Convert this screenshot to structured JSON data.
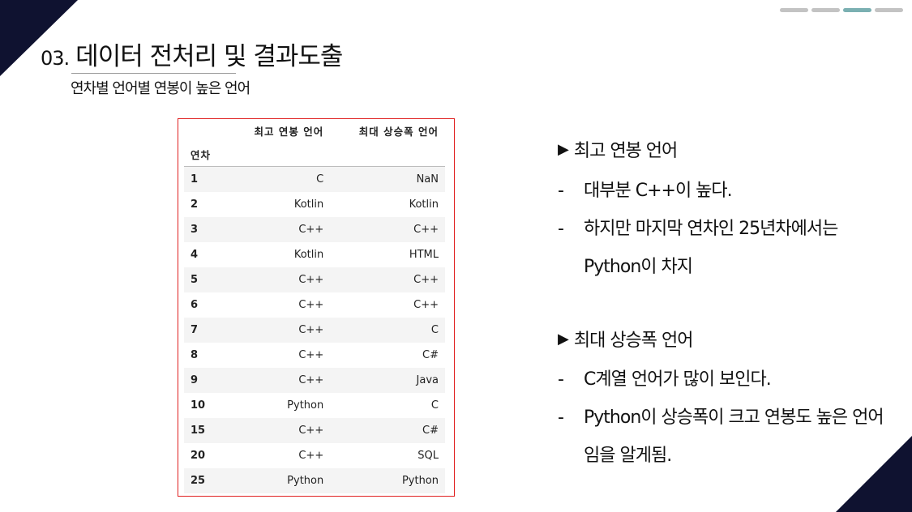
{
  "slide": {
    "number": "03.",
    "title": "데이터 전처리 및 결과도출",
    "subtitle": "연차별 언어별 연봉이 높은 언어"
  },
  "table": {
    "columns": [
      "최고 연봉 언어",
      "최대 상승폭 언어"
    ],
    "index_label": "연차",
    "rows": [
      {
        "year": "1",
        "top": "C",
        "rise": "NaN"
      },
      {
        "year": "2",
        "top": "Kotlin",
        "rise": "Kotlin"
      },
      {
        "year": "3",
        "top": "C++",
        "rise": "C++"
      },
      {
        "year": "4",
        "top": "Kotlin",
        "rise": "HTML"
      },
      {
        "year": "5",
        "top": "C++",
        "rise": "C++"
      },
      {
        "year": "6",
        "top": "C++",
        "rise": "C++"
      },
      {
        "year": "7",
        "top": "C++",
        "rise": "C"
      },
      {
        "year": "8",
        "top": "C++",
        "rise": "C#"
      },
      {
        "year": "9",
        "top": "C++",
        "rise": "Java"
      },
      {
        "year": "10",
        "top": "Python",
        "rise": "C"
      },
      {
        "year": "15",
        "top": "C++",
        "rise": "C#"
      },
      {
        "year": "20",
        "top": "C++",
        "rise": "SQL"
      },
      {
        "year": "25",
        "top": "Python",
        "rise": "Python"
      }
    ]
  },
  "sections": [
    {
      "marker": "▶",
      "heading": "최고 연봉 언어",
      "items": [
        {
          "dash": "-",
          "text": "대부분 C++이 높다."
        },
        {
          "dash": "-",
          "text": "하지만 마지막 연차인 25년차에서는 Python이 차지"
        }
      ]
    },
    {
      "marker": "▶",
      "heading": "최대 상승폭 언어",
      "items": [
        {
          "dash": "-",
          "text": "C계열 언어가 많이 보인다."
        },
        {
          "dash": "-",
          "text": "Python이 상승폭이 크고 연봉도 높은 언어임을 알게됨."
        }
      ]
    }
  ],
  "colors": {
    "corner": "#0f1230",
    "table_border": "#e02020",
    "progress_active": "#7bb0b2",
    "progress_inactive": "#c3c3c3"
  },
  "progress": {
    "total": 4,
    "active_index": 2
  }
}
